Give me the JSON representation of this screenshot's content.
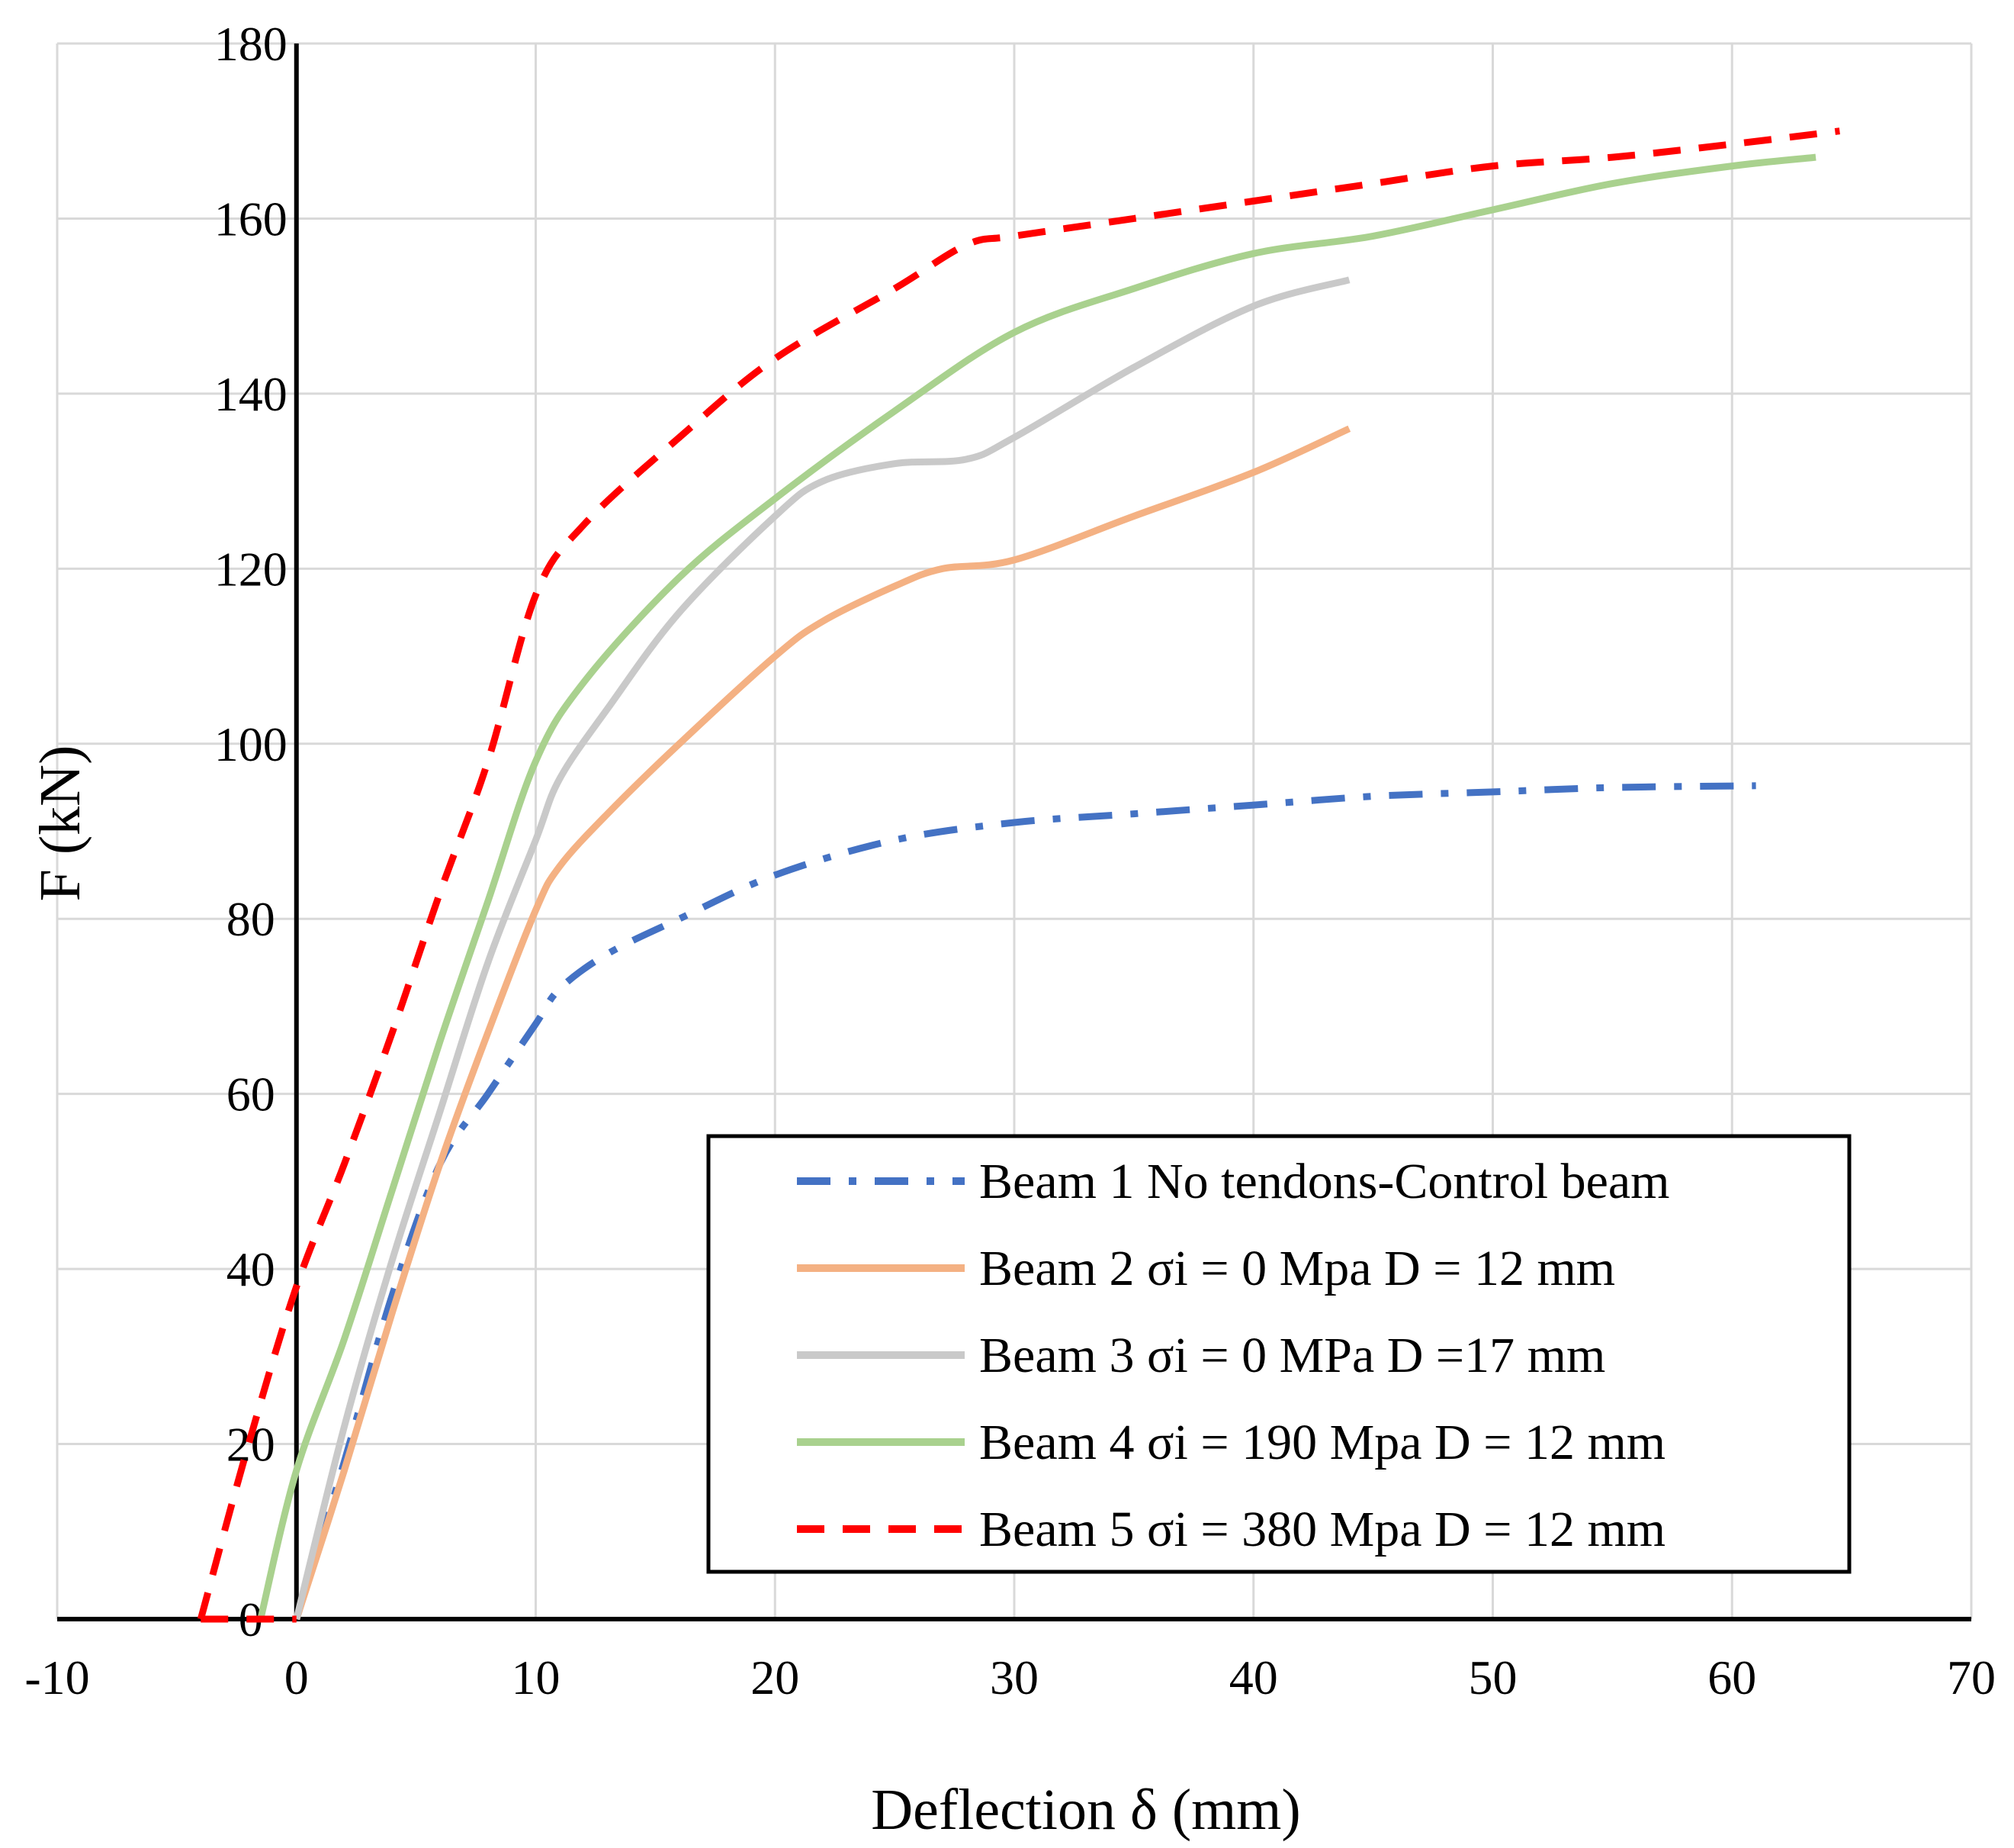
{
  "chart_data": {
    "type": "line",
    "title": "",
    "xlabel": "Deflection δ (mm)",
    "ylabel": "F (kN)",
    "xlim": [
      -10,
      70
    ],
    "ylim": [
      0,
      180
    ],
    "x_ticks": [
      -10,
      0,
      10,
      20,
      30,
      40,
      50,
      60,
      70
    ],
    "y_ticks": [
      0,
      20,
      40,
      60,
      80,
      100,
      120,
      140,
      160,
      180
    ],
    "grid": true,
    "legend_position": "bottom-right",
    "series": [
      {
        "name": "Beam 1 No tendons-Control beam",
        "color": "#4472C4",
        "dash": "dash-dot",
        "points": [
          [
            0,
            0
          ],
          [
            2,
            18
          ],
          [
            4,
            37
          ],
          [
            6,
            52
          ],
          [
            8,
            60
          ],
          [
            10,
            68
          ],
          [
            11,
            72
          ],
          [
            13,
            76
          ],
          [
            16,
            80
          ],
          [
            20,
            85
          ],
          [
            25,
            89
          ],
          [
            30,
            91
          ],
          [
            35,
            92
          ],
          [
            40,
            93
          ],
          [
            45,
            94
          ],
          [
            50,
            94.5
          ],
          [
            55,
            95
          ],
          [
            61,
            95.2
          ]
        ]
      },
      {
        "name": "Beam 2 σi = 0 Mpa D = 12 mm",
        "color": "#F4B183",
        "dash": "solid",
        "points": [
          [
            0,
            0
          ],
          [
            2,
            17
          ],
          [
            4,
            35
          ],
          [
            6,
            52
          ],
          [
            8,
            67
          ],
          [
            10,
            81
          ],
          [
            11,
            86
          ],
          [
            13,
            92
          ],
          [
            16,
            100
          ],
          [
            20,
            110
          ],
          [
            22,
            114
          ],
          [
            25,
            118
          ],
          [
            27,
            120
          ],
          [
            30,
            121
          ],
          [
            35,
            126
          ],
          [
            40,
            131
          ],
          [
            44,
            136
          ]
        ]
      },
      {
        "name": "Beam 3 σi = 0 MPa D =17 mm",
        "color": "#C9C9C9",
        "dash": "solid",
        "points": [
          [
            0,
            0
          ],
          [
            2,
            22
          ],
          [
            4,
            41
          ],
          [
            6,
            58
          ],
          [
            8,
            75
          ],
          [
            10,
            89
          ],
          [
            11,
            96
          ],
          [
            13,
            104
          ],
          [
            16,
            115
          ],
          [
            20,
            126
          ],
          [
            22,
            130
          ],
          [
            25,
            132
          ],
          [
            28,
            132.5
          ],
          [
            30,
            135
          ],
          [
            35,
            143
          ],
          [
            40,
            150
          ],
          [
            44,
            153
          ]
        ]
      },
      {
        "name": "Beam 4 σi = 190 Mpa D = 12 mm",
        "color": "#A9D18E",
        "dash": "solid",
        "points": [
          [
            -1.5,
            0
          ],
          [
            0,
            17
          ],
          [
            2,
            32
          ],
          [
            4,
            49
          ],
          [
            6,
            66
          ],
          [
            8,
            82
          ],
          [
            10,
            98
          ],
          [
            12,
            107
          ],
          [
            16,
            119
          ],
          [
            20,
            128
          ],
          [
            25,
            138
          ],
          [
            30,
            147
          ],
          [
            35,
            152
          ],
          [
            40,
            156
          ],
          [
            45,
            158
          ],
          [
            50,
            161
          ],
          [
            55,
            164
          ],
          [
            60,
            166
          ],
          [
            63.5,
            167
          ]
        ]
      },
      {
        "name": "Beam 5 σi = 380 Mpa D = 12 mm",
        "color": "#FF0000",
        "dash": "dashed",
        "points": [
          [
            -4,
            0
          ],
          [
            -2,
            20
          ],
          [
            0,
            38
          ],
          [
            2,
            52
          ],
          [
            4,
            67
          ],
          [
            6,
            83
          ],
          [
            8,
            98
          ],
          [
            10,
            117
          ],
          [
            12,
            125
          ],
          [
            16,
            135
          ],
          [
            20,
            144
          ],
          [
            25,
            152
          ],
          [
            28,
            157
          ],
          [
            30,
            158
          ],
          [
            35,
            160
          ],
          [
            40,
            162
          ],
          [
            45,
            164
          ],
          [
            50,
            166
          ],
          [
            55,
            167
          ],
          [
            60,
            168.5
          ],
          [
            64.5,
            170
          ]
        ]
      }
    ]
  }
}
